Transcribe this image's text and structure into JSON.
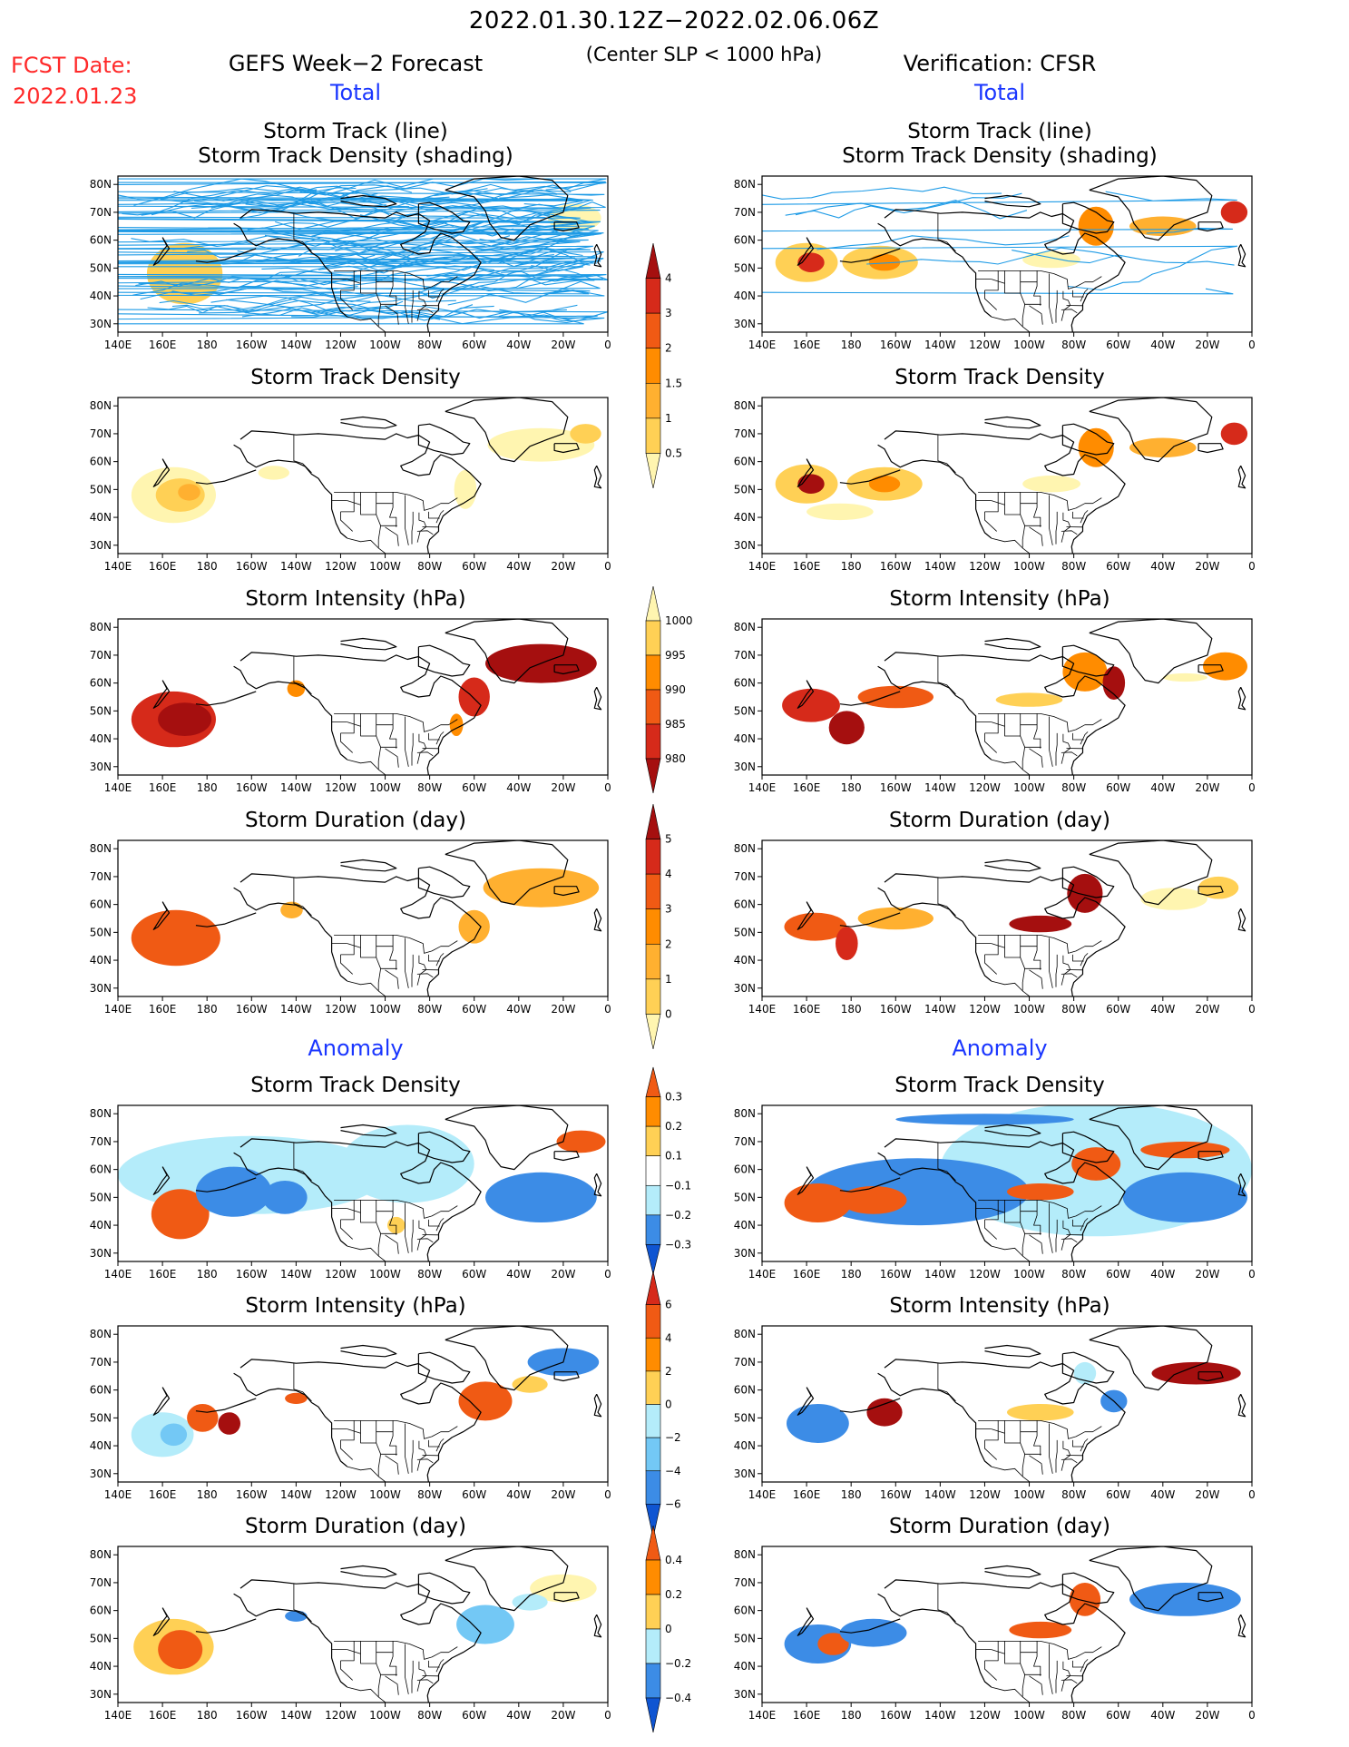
{
  "header": {
    "date_range": "2022.01.30.12Z−2022.02.06.06Z",
    "condition": "(Center SLP < 1000 hPa)",
    "fcst_label": "FCST Date:",
    "fcst_date": "2022.01.23",
    "left_title": "GEFS Week−2 Forecast",
    "right_title": "Verification: CFSR",
    "total_label": "Total",
    "anomaly_label": "Anomaly"
  },
  "titles": {
    "track_line": "Storm Track (line)",
    "track_shading": "Storm Track Density (shading)",
    "density": "Storm Track Density",
    "intensity": "Storm Intensity (hPa)",
    "duration": "Storm Duration (day)"
  },
  "axes": {
    "lon_labels": [
      "140E",
      "160E",
      "180",
      "160W",
      "140W",
      "120W",
      "100W",
      "80W",
      "60W",
      "40W",
      "20W",
      "0"
    ],
    "lat_labels": [
      "80N",
      "70N",
      "60N",
      "50N",
      "40N",
      "30N"
    ]
  },
  "colors": {
    "lightyellow": "#fff5b0",
    "yellow": "#ffd055",
    "lightorange": "#ffb030",
    "orange": "#ff8c00",
    "redorange": "#f05a14",
    "red": "#d62a1a",
    "darkred": "#a50f0f",
    "track": "#1e9be6",
    "lightblue": "#b4ecfa",
    "midblue": "#73c8f5",
    "blue": "#3c8ce6",
    "darkblue": "#0f55d2"
  },
  "colorbars": [
    {
      "name": "density-total",
      "labels": [
        "4",
        "3",
        "2",
        "1.5",
        "1",
        "0.5"
      ],
      "colors": [
        "#a50f0f",
        "#d62a1a",
        "#f05a14",
        "#ff8c00",
        "#ffb030",
        "#ffd055",
        "#fff5b0"
      ]
    },
    {
      "name": "intensity-total",
      "labels": [
        "1000",
        "995",
        "990",
        "985",
        "980"
      ],
      "colors": [
        "#fff5b0",
        "#ffd055",
        "#ff8c00",
        "#f05a14",
        "#d62a1a",
        "#a50f0f"
      ]
    },
    {
      "name": "duration-total",
      "labels": [
        "5",
        "4",
        "3",
        "2",
        "1",
        "0"
      ],
      "colors": [
        "#a50f0f",
        "#d62a1a",
        "#f05a14",
        "#ff8c00",
        "#ffb030",
        "#ffd055",
        "#fff5b0"
      ]
    },
    {
      "name": "density-anomaly",
      "labels": [
        "0.3",
        "0.2",
        "0.1",
        "−0.1",
        "−0.2",
        "−0.3"
      ],
      "colors": [
        "#f05a14",
        "#ff8c00",
        "#ffd055",
        "#ffffff",
        "#b4ecfa",
        "#3c8ce6",
        "#0f55d2"
      ]
    },
    {
      "name": "intensity-anomaly",
      "labels": [
        "6",
        "4",
        "2",
        "0",
        "−2",
        "−4",
        "−6"
      ],
      "colors": [
        "#d62a1a",
        "#f05a14",
        "#ff8c00",
        "#ffd055",
        "#b4ecfa",
        "#73c8f5",
        "#3c8ce6",
        "#0f55d2"
      ]
    },
    {
      "name": "duration-anomaly",
      "labels": [
        "0.4",
        "0.2",
        "0",
        "−0.2",
        "−0.4"
      ],
      "colors": [
        "#f05a14",
        "#ff8c00",
        "#ffd055",
        "#b4ecfa",
        "#3c8ce6",
        "#0f55d2"
      ]
    }
  ],
  "chart_data": {
    "type": "heatmap",
    "map_extent": {
      "lon": [
        "140E",
        "0"
      ],
      "lat": [
        "30N",
        "80N"
      ]
    },
    "panels": [
      {
        "id": "fcst-track",
        "column": "GEFS Week−2 Forecast",
        "section": "Total",
        "field": "Storm Track (line) + Density (shading)",
        "blobs": [
          {
            "lon": 170,
            "lat": 48,
            "w": 34,
            "h": 22,
            "c": "yellow"
          },
          {
            "lon": -15,
            "lat": 68,
            "w": 24,
            "h": 10,
            "c": "lightyellow"
          }
        ],
        "tracks": true
      },
      {
        "id": "cfsr-track",
        "column": "Verification: CFSR",
        "section": "Total",
        "field": "Storm Track (line) + Density (shading)",
        "blobs": [
          {
            "lon": 160,
            "lat": 52,
            "w": 28,
            "h": 14,
            "c": "yellow"
          },
          {
            "lon": 162,
            "lat": 52,
            "w": 12,
            "h": 7,
            "c": "red"
          },
          {
            "lon": -167,
            "lat": 52,
            "w": 34,
            "h": 12,
            "c": "yellow"
          },
          {
            "lon": -165,
            "lat": 52,
            "w": 14,
            "h": 6,
            "c": "orange"
          },
          {
            "lon": -70,
            "lat": 65,
            "w": 16,
            "h": 14,
            "c": "orange"
          },
          {
            "lon": -40,
            "lat": 65,
            "w": 30,
            "h": 7,
            "c": "lightorange"
          },
          {
            "lon": -8,
            "lat": 70,
            "w": 12,
            "h": 8,
            "c": "red"
          },
          {
            "lon": -90,
            "lat": 53,
            "w": 26,
            "h": 6,
            "c": "lightyellow"
          }
        ],
        "tracks": "few"
      },
      {
        "id": "fcst-density",
        "column": "GEFS Week−2 Forecast",
        "section": "Total",
        "field": "Storm Track Density",
        "blobs": [
          {
            "lon": 165,
            "lat": 48,
            "w": 38,
            "h": 20,
            "c": "lightyellow"
          },
          {
            "lon": 168,
            "lat": 48,
            "w": 22,
            "h": 12,
            "c": "yellow"
          },
          {
            "lon": 172,
            "lat": 49,
            "w": 10,
            "h": 6,
            "c": "lightorange"
          },
          {
            "lon": -150,
            "lat": 56,
            "w": 14,
            "h": 5,
            "c": "lightyellow"
          },
          {
            "lon": -30,
            "lat": 66,
            "w": 48,
            "h": 12,
            "c": "lightyellow"
          },
          {
            "lon": -10,
            "lat": 70,
            "w": 14,
            "h": 7,
            "c": "yellow"
          },
          {
            "lon": -64,
            "lat": 50,
            "w": 10,
            "h": 14,
            "c": "lightyellow"
          }
        ]
      },
      {
        "id": "cfsr-density",
        "column": "Verification: CFSR",
        "section": "Total",
        "field": "Storm Track Density",
        "blobs": [
          {
            "lon": 160,
            "lat": 52,
            "w": 28,
            "h": 14,
            "c": "yellow"
          },
          {
            "lon": 162,
            "lat": 52,
            "w": 12,
            "h": 7,
            "c": "darkred"
          },
          {
            "lon": -165,
            "lat": 52,
            "w": 34,
            "h": 12,
            "c": "yellow"
          },
          {
            "lon": -165,
            "lat": 52,
            "w": 14,
            "h": 6,
            "c": "orange"
          },
          {
            "lon": -70,
            "lat": 65,
            "w": 16,
            "h": 14,
            "c": "orange"
          },
          {
            "lon": -40,
            "lat": 65,
            "w": 30,
            "h": 7,
            "c": "lightorange"
          },
          {
            "lon": -8,
            "lat": 70,
            "w": 12,
            "h": 8,
            "c": "red"
          },
          {
            "lon": -90,
            "lat": 52,
            "w": 26,
            "h": 6,
            "c": "lightyellow"
          },
          {
            "lon": 175,
            "lat": 42,
            "w": 30,
            "h": 6,
            "c": "lightyellow"
          }
        ]
      },
      {
        "id": "fcst-intensity",
        "column": "GEFS Week−2 Forecast",
        "section": "Total",
        "field": "Storm Intensity (hPa)",
        "blobs": [
          {
            "lon": 165,
            "lat": 47,
            "w": 38,
            "h": 20,
            "c": "red"
          },
          {
            "lon": 170,
            "lat": 47,
            "w": 24,
            "h": 12,
            "c": "darkred"
          },
          {
            "lon": -140,
            "lat": 58,
            "w": 8,
            "h": 6,
            "c": "orange"
          },
          {
            "lon": -30,
            "lat": 67,
            "w": 50,
            "h": 14,
            "c": "darkred"
          },
          {
            "lon": -60,
            "lat": 55,
            "w": 14,
            "h": 14,
            "c": "red"
          },
          {
            "lon": -68,
            "lat": 45,
            "w": 6,
            "h": 8,
            "c": "orange"
          }
        ]
      },
      {
        "id": "cfsr-intensity",
        "column": "Verification: CFSR",
        "section": "Total",
        "field": "Storm Intensity (hPa)",
        "blobs": [
          {
            "lon": 162,
            "lat": 52,
            "w": 26,
            "h": 12,
            "c": "red"
          },
          {
            "lon": 178,
            "lat": 44,
            "w": 16,
            "h": 12,
            "c": "darkred"
          },
          {
            "lon": -160,
            "lat": 55,
            "w": 34,
            "h": 8,
            "c": "redorange"
          },
          {
            "lon": -100,
            "lat": 54,
            "w": 30,
            "h": 5,
            "c": "yellow"
          },
          {
            "lon": -75,
            "lat": 64,
            "w": 20,
            "h": 14,
            "c": "orange"
          },
          {
            "lon": -62,
            "lat": 60,
            "w": 10,
            "h": 12,
            "c": "darkred"
          },
          {
            "lon": -12,
            "lat": 66,
            "w": 20,
            "h": 10,
            "c": "orange"
          },
          {
            "lon": -30,
            "lat": 62,
            "w": 20,
            "h": 3,
            "c": "lightyellow"
          }
        ]
      },
      {
        "id": "fcst-duration",
        "column": "GEFS Week−2 Forecast",
        "section": "Total",
        "field": "Storm Duration (day)",
        "blobs": [
          {
            "lon": 166,
            "lat": 48,
            "w": 40,
            "h": 20,
            "c": "redorange"
          },
          {
            "lon": -142,
            "lat": 58,
            "w": 10,
            "h": 6,
            "c": "lightorange"
          },
          {
            "lon": -30,
            "lat": 66,
            "w": 52,
            "h": 14,
            "c": "lightorange"
          },
          {
            "lon": -60,
            "lat": 52,
            "w": 14,
            "h": 12,
            "c": "lightorange"
          }
        ]
      },
      {
        "id": "cfsr-duration",
        "column": "Verification: CFSR",
        "section": "Total",
        "field": "Storm Duration (day)",
        "blobs": [
          {
            "lon": 164,
            "lat": 52,
            "w": 28,
            "h": 10,
            "c": "redorange"
          },
          {
            "lon": 178,
            "lat": 46,
            "w": 10,
            "h": 12,
            "c": "red"
          },
          {
            "lon": -160,
            "lat": 55,
            "w": 34,
            "h": 8,
            "c": "lightorange"
          },
          {
            "lon": -95,
            "lat": 53,
            "w": 28,
            "h": 6,
            "c": "darkred"
          },
          {
            "lon": -75,
            "lat": 64,
            "w": 16,
            "h": 14,
            "c": "darkred"
          },
          {
            "lon": -35,
            "lat": 62,
            "w": 30,
            "h": 8,
            "c": "lightyellow"
          },
          {
            "lon": -15,
            "lat": 66,
            "w": 18,
            "h": 8,
            "c": "yellow"
          }
        ]
      },
      {
        "id": "fcst-density-anom",
        "column": "GEFS Week−2 Forecast",
        "section": "Anomaly",
        "field": "Storm Track Density",
        "blobs": [
          {
            "lon": -160,
            "lat": 58,
            "w": 120,
            "h": 28,
            "c": "lightblue"
          },
          {
            "lon": -90,
            "lat": 62,
            "w": 60,
            "h": 28,
            "c": "lightblue"
          },
          {
            "lon": 168,
            "lat": 44,
            "w": 26,
            "h": 18,
            "c": "redorange"
          },
          {
            "lon": -168,
            "lat": 52,
            "w": 34,
            "h": 18,
            "c": "blue"
          },
          {
            "lon": -145,
            "lat": 50,
            "w": 20,
            "h": 12,
            "c": "blue"
          },
          {
            "lon": -30,
            "lat": 50,
            "w": 50,
            "h": 18,
            "c": "blue"
          },
          {
            "lon": -12,
            "lat": 70,
            "w": 22,
            "h": 8,
            "c": "redorange"
          },
          {
            "lon": -95,
            "lat": 40,
            "w": 8,
            "h": 6,
            "c": "yellow"
          }
        ]
      },
      {
        "id": "cfsr-density-anom",
        "column": "Verification: CFSR",
        "section": "Anomaly",
        "field": "Storm Track Density",
        "blobs": [
          {
            "lon": -70,
            "lat": 60,
            "w": 140,
            "h": 48,
            "c": "lightblue"
          },
          {
            "lon": -150,
            "lat": 52,
            "w": 100,
            "h": 24,
            "c": "blue"
          },
          {
            "lon": 165,
            "lat": 48,
            "w": 30,
            "h": 14,
            "c": "redorange"
          },
          {
            "lon": -170,
            "lat": 49,
            "w": 30,
            "h": 10,
            "c": "redorange"
          },
          {
            "lon": -95,
            "lat": 52,
            "w": 30,
            "h": 6,
            "c": "redorange"
          },
          {
            "lon": -70,
            "lat": 62,
            "w": 22,
            "h": 12,
            "c": "redorange"
          },
          {
            "lon": -30,
            "lat": 50,
            "w": 56,
            "h": 18,
            "c": "blue"
          },
          {
            "lon": -30,
            "lat": 67,
            "w": 40,
            "h": 6,
            "c": "redorange"
          },
          {
            "lon": -120,
            "lat": 78,
            "w": 80,
            "h": 4,
            "c": "blue"
          }
        ]
      },
      {
        "id": "fcst-intensity-anom",
        "column": "GEFS Week−2 Forecast",
        "section": "Anomaly",
        "field": "Storm Intensity (hPa)",
        "blobs": [
          {
            "lon": 160,
            "lat": 44,
            "w": 28,
            "h": 16,
            "c": "lightblue"
          },
          {
            "lon": 165,
            "lat": 44,
            "w": 12,
            "h": 8,
            "c": "midblue"
          },
          {
            "lon": 178,
            "lat": 50,
            "w": 14,
            "h": 10,
            "c": "redorange"
          },
          {
            "lon": -170,
            "lat": 48,
            "w": 10,
            "h": 8,
            "c": "darkred"
          },
          {
            "lon": -140,
            "lat": 57,
            "w": 10,
            "h": 4,
            "c": "redorange"
          },
          {
            "lon": -55,
            "lat": 56,
            "w": 24,
            "h": 14,
            "c": "redorange"
          },
          {
            "lon": -20,
            "lat": 70,
            "w": 32,
            "h": 10,
            "c": "blue"
          },
          {
            "lon": -35,
            "lat": 62,
            "w": 16,
            "h": 6,
            "c": "yellow"
          }
        ]
      },
      {
        "id": "cfsr-intensity-anom",
        "column": "Verification: CFSR",
        "section": "Anomaly",
        "field": "Storm Intensity (hPa)",
        "blobs": [
          {
            "lon": 165,
            "lat": 48,
            "w": 28,
            "h": 14,
            "c": "blue"
          },
          {
            "lon": -165,
            "lat": 52,
            "w": 16,
            "h": 10,
            "c": "darkred"
          },
          {
            "lon": -95,
            "lat": 52,
            "w": 30,
            "h": 6,
            "c": "yellow"
          },
          {
            "lon": -62,
            "lat": 56,
            "w": 12,
            "h": 8,
            "c": "blue"
          },
          {
            "lon": -25,
            "lat": 66,
            "w": 40,
            "h": 8,
            "c": "darkred"
          },
          {
            "lon": -75,
            "lat": 66,
            "w": 10,
            "h": 8,
            "c": "lightblue"
          }
        ]
      },
      {
        "id": "fcst-duration-anom",
        "column": "GEFS Week−2 Forecast",
        "section": "Anomaly",
        "field": "Storm Duration (day)",
        "blobs": [
          {
            "lon": 165,
            "lat": 47,
            "w": 36,
            "h": 20,
            "c": "yellow"
          },
          {
            "lon": 168,
            "lat": 46,
            "w": 20,
            "h": 14,
            "c": "redorange"
          },
          {
            "lon": -140,
            "lat": 58,
            "w": 10,
            "h": 4,
            "c": "blue"
          },
          {
            "lon": -55,
            "lat": 55,
            "w": 26,
            "h": 14,
            "c": "midblue"
          },
          {
            "lon": -20,
            "lat": 68,
            "w": 30,
            "h": 10,
            "c": "lightyellow"
          },
          {
            "lon": -35,
            "lat": 63,
            "w": 16,
            "h": 6,
            "c": "lightblue"
          }
        ]
      },
      {
        "id": "cfsr-duration-anom",
        "column": "Verification: CFSR",
        "section": "Anomaly",
        "field": "Storm Duration (day)",
        "blobs": [
          {
            "lon": 165,
            "lat": 48,
            "w": 30,
            "h": 14,
            "c": "blue"
          },
          {
            "lon": 172,
            "lat": 48,
            "w": 14,
            "h": 8,
            "c": "redorange"
          },
          {
            "lon": -170,
            "lat": 52,
            "w": 30,
            "h": 10,
            "c": "blue"
          },
          {
            "lon": -95,
            "lat": 53,
            "w": 28,
            "h": 6,
            "c": "redorange"
          },
          {
            "lon": -75,
            "lat": 64,
            "w": 14,
            "h": 12,
            "c": "redorange"
          },
          {
            "lon": -30,
            "lat": 64,
            "w": 50,
            "h": 12,
            "c": "blue"
          }
        ]
      }
    ]
  }
}
